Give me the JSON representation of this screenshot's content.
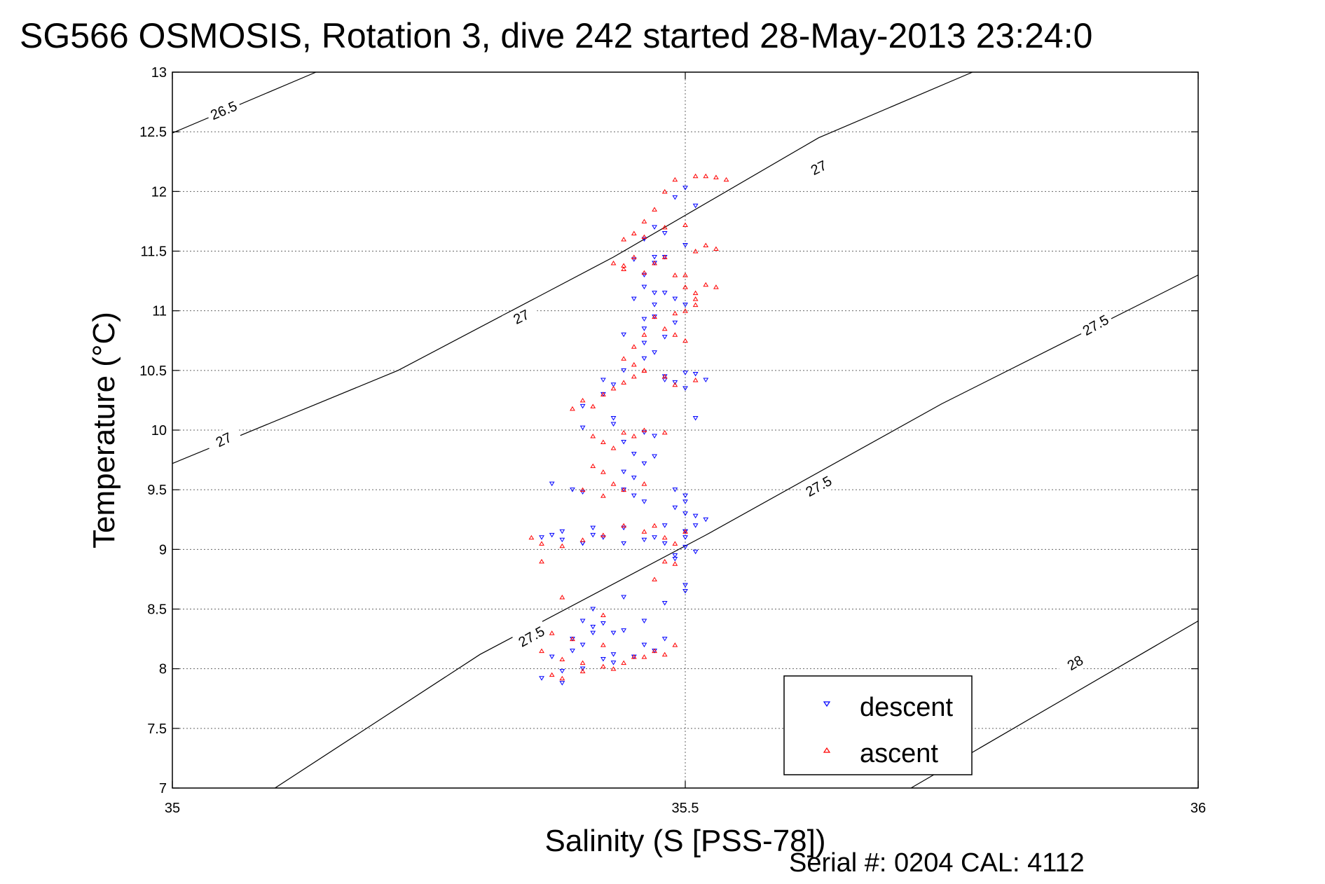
{
  "chart_data": {
    "type": "scatter",
    "title": "SG566 OSMOSIS, Rotation 3, dive 242 started 28-May-2013 23:24:0",
    "xlabel": "Salinity (S [PSS-78])",
    "ylabel": "Temperature (°C)",
    "xlim": [
      35,
      36
    ],
    "ylim": [
      7,
      13
    ],
    "xticks": [
      "35",
      "35.5",
      "36"
    ],
    "yticks": [
      "7",
      "7.5",
      "8",
      "8.5",
      "9",
      "9.5",
      "10",
      "10.5",
      "11",
      "11.5",
      "12",
      "12.5",
      "13"
    ],
    "grid": true,
    "legend_position": "bottom-right",
    "density_contours": [
      {
        "label": "26.5",
        "points": [
          [
            35.0,
            12.49
          ],
          [
            35.14,
            13.0
          ]
        ],
        "label_pos": [
          35.05,
          12.68
        ]
      },
      {
        "label": "27",
        "points": [
          [
            35.0,
            9.72
          ],
          [
            35.22,
            10.5
          ],
          [
            35.43,
            11.45
          ],
          [
            35.63,
            12.45
          ],
          [
            35.78,
            13.0
          ]
        ],
        "label_pos": [
          [
            35.05,
            9.92
          ],
          [
            35.34,
            10.95
          ],
          [
            35.63,
            12.2
          ]
        ]
      },
      {
        "label": "27.5",
        "points": [
          [
            35.1,
            7.0
          ],
          [
            35.3,
            8.12
          ],
          [
            35.52,
            9.12
          ],
          [
            35.75,
            10.22
          ],
          [
            36.0,
            11.3
          ]
        ],
        "label_pos": [
          [
            35.35,
            8.27
          ],
          [
            35.63,
            9.53
          ],
          [
            35.9,
            10.88
          ]
        ]
      },
      {
        "label": "28",
        "points": [
          [
            35.72,
            7.0
          ],
          [
            36.0,
            8.4
          ]
        ],
        "label_pos": [
          35.88,
          8.05
        ]
      }
    ],
    "series": [
      {
        "name": "descent",
        "color": "#0000ff",
        "marker": "triangle-down",
        "x": [
          35.5,
          35.49,
          35.51,
          35.48,
          35.47,
          35.46,
          35.5,
          35.47,
          35.45,
          35.47,
          35.48,
          35.46,
          35.46,
          35.47,
          35.49,
          35.47,
          35.45,
          35.48,
          35.5,
          35.47,
          35.46,
          35.49,
          35.46,
          35.44,
          35.46,
          35.48,
          35.47,
          35.46,
          35.44,
          35.42,
          35.43,
          35.48,
          35.48,
          35.5,
          35.51,
          35.42,
          35.4,
          35.43,
          35.4,
          35.43,
          35.46,
          35.47,
          35.44,
          35.45,
          35.47,
          35.51,
          35.49,
          35.5,
          35.52,
          35.46,
          35.44,
          35.45,
          35.49,
          35.5,
          35.5,
          35.49,
          35.37,
          35.39,
          35.4,
          35.45,
          35.44,
          35.46,
          35.5,
          35.51,
          35.52,
          35.51,
          35.5,
          35.36,
          35.38,
          35.41,
          35.41,
          35.4,
          35.44,
          35.47,
          35.48,
          35.5,
          35.5,
          35.49,
          35.37,
          35.38,
          35.4,
          35.42,
          35.44,
          35.46,
          35.48,
          35.5,
          35.51,
          35.49,
          35.4,
          35.41,
          35.42,
          35.41,
          35.39,
          35.43,
          35.44,
          35.46,
          35.48,
          35.5,
          35.4,
          35.39,
          35.37,
          35.43,
          35.42,
          35.46,
          35.48,
          35.38,
          35.36,
          35.38,
          35.4,
          35.43,
          35.45,
          35.47,
          35.41,
          35.44,
          35.5
        ],
        "y": [
          12.03,
          11.95,
          11.88,
          11.65,
          11.7,
          11.6,
          11.55,
          11.45,
          11.43,
          11.4,
          11.45,
          11.3,
          11.2,
          11.15,
          11.1,
          11.05,
          11.1,
          11.15,
          11.05,
          10.95,
          10.93,
          10.9,
          10.85,
          10.8,
          10.73,
          10.78,
          10.65,
          10.6,
          10.5,
          10.42,
          10.38,
          10.42,
          10.45,
          10.48,
          10.47,
          10.3,
          10.2,
          10.1,
          10.02,
          10.05,
          9.98,
          9.95,
          9.9,
          9.8,
          9.78,
          10.1,
          10.4,
          10.35,
          10.42,
          9.72,
          9.65,
          9.6,
          9.5,
          9.45,
          9.4,
          9.35,
          9.55,
          9.5,
          9.48,
          9.45,
          9.5,
          9.4,
          9.3,
          9.28,
          9.25,
          9.2,
          9.15,
          9.1,
          9.08,
          9.12,
          9.18,
          9.05,
          9.05,
          9.1,
          9.2,
          9.15,
          9.1,
          8.95,
          9.12,
          9.15,
          9.05,
          9.1,
          9.18,
          9.08,
          9.05,
          9.02,
          8.98,
          8.92,
          8.4,
          8.35,
          8.38,
          8.3,
          8.25,
          8.3,
          8.32,
          8.4,
          8.55,
          8.7,
          8.2,
          8.15,
          8.1,
          8.12,
          8.08,
          8.2,
          8.25,
          7.98,
          7.92,
          7.88,
          8.0,
          8.05,
          8.1,
          8.15,
          8.5,
          8.6,
          8.65
        ]
      },
      {
        "name": "ascent",
        "color": "#ff0000",
        "marker": "triangle-up",
        "x": [
          35.49,
          35.51,
          35.52,
          35.53,
          35.54,
          35.48,
          35.47,
          35.46,
          35.45,
          35.44,
          35.46,
          35.48,
          35.5,
          35.51,
          35.52,
          35.53,
          35.45,
          35.44,
          35.43,
          35.44,
          35.46,
          35.47,
          35.48,
          35.49,
          35.5,
          35.51,
          35.52,
          35.53,
          35.51,
          35.5,
          35.49,
          35.47,
          35.46,
          35.45,
          35.44,
          35.45,
          35.46,
          35.48,
          35.49,
          35.5,
          35.5,
          35.51,
          35.45,
          35.43,
          35.42,
          35.44,
          35.46,
          35.48,
          35.49,
          35.51,
          35.4,
          35.41,
          35.39,
          35.41,
          35.42,
          35.43,
          35.44,
          35.45,
          35.46,
          35.48,
          35.41,
          35.42,
          35.43,
          35.4,
          35.42,
          35.44,
          35.46,
          35.35,
          35.36,
          35.38,
          35.4,
          35.42,
          35.44,
          35.46,
          35.47,
          35.48,
          35.49,
          35.5,
          35.48,
          35.49,
          35.36,
          35.38,
          35.4,
          35.43,
          35.45,
          35.47,
          35.49,
          35.37,
          35.38,
          35.4,
          35.42,
          35.44,
          35.46,
          35.48,
          35.37,
          35.39,
          35.42,
          35.36,
          35.38,
          35.42,
          35.47
        ],
        "y": [
          12.1,
          12.13,
          12.13,
          12.12,
          12.1,
          12.0,
          11.85,
          11.75,
          11.65,
          11.6,
          11.62,
          11.7,
          11.72,
          11.5,
          11.55,
          11.52,
          11.45,
          11.38,
          11.4,
          11.35,
          11.32,
          11.4,
          11.45,
          11.3,
          11.2,
          11.15,
          11.22,
          11.2,
          11.05,
          11.0,
          10.98,
          10.95,
          10.8,
          10.7,
          10.6,
          10.55,
          10.5,
          10.85,
          10.8,
          10.75,
          11.3,
          11.1,
          10.45,
          10.35,
          10.3,
          10.4,
          10.5,
          10.45,
          10.38,
          10.42,
          10.25,
          10.2,
          10.18,
          9.95,
          9.9,
          9.85,
          9.98,
          9.95,
          10.0,
          9.98,
          9.7,
          9.65,
          9.55,
          9.5,
          9.45,
          9.5,
          9.55,
          9.1,
          9.05,
          9.03,
          9.08,
          9.12,
          9.2,
          9.15,
          9.2,
          9.1,
          9.05,
          9.15,
          8.9,
          8.88,
          8.15,
          8.08,
          8.05,
          8.0,
          8.1,
          8.15,
          8.2,
          7.95,
          7.92,
          7.98,
          8.02,
          8.05,
          8.1,
          8.12,
          8.3,
          8.25,
          8.2,
          8.9,
          8.6,
          8.45,
          8.75
        ]
      }
    ]
  },
  "footer": {
    "serial": "Serial #: 0204  CAL: 4112"
  }
}
